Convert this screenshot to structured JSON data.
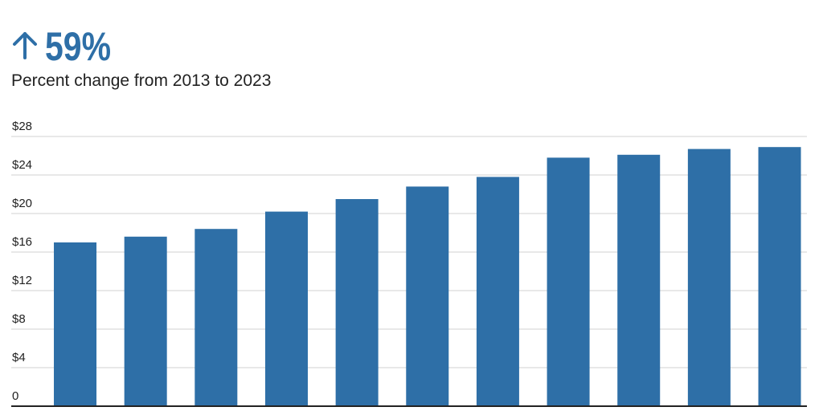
{
  "chart_data": {
    "type": "bar",
    "title": "59%",
    "subtitle": "Percent change from 2013 to 2023",
    "categories": [
      null,
      null,
      null,
      null,
      null,
      null,
      null,
      null,
      null,
      null,
      null
    ],
    "values": [
      17.0,
      17.6,
      18.4,
      20.2,
      21.5,
      22.8,
      23.8,
      25.8,
      26.1,
      26.7,
      26.9
    ],
    "color": "#2e6fa7",
    "ylim": [
      0,
      28
    ],
    "yticks": [
      0,
      {
        "value": 4,
        "label": "$4"
      },
      {
        "value": 8,
        "label": "$8"
      },
      {
        "value": 12,
        "label": "$12"
      },
      {
        "value": 16,
        "label": "$16"
      },
      {
        "value": 20,
        "label": "$20"
      },
      {
        "value": 24,
        "label": "$24"
      },
      {
        "value": 28,
        "label": "$28"
      }
    ],
    "grid": true
  }
}
